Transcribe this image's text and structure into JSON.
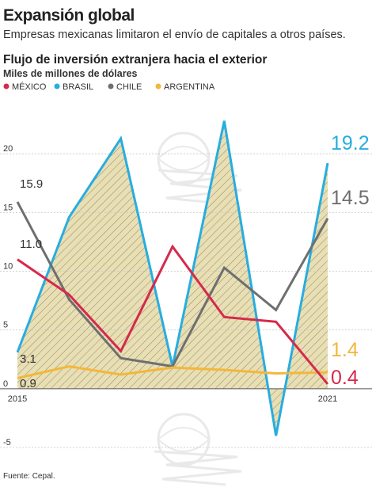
{
  "headline": "Expansión global",
  "subheadline": "Empresas mexicanas limitaron el envío de capitales a otros países.",
  "source": "Fuente: Cepal.",
  "chart_data": {
    "type": "line",
    "title": "Flujo de inversión extranjera hacia el exterior",
    "ylabel": "Miles de millones de dólares",
    "x": [
      2015,
      2016,
      2017,
      2018,
      2019,
      2020,
      2021
    ],
    "x_tick_labels": [
      "2015",
      "2021"
    ],
    "ylim": [
      -5,
      25
    ],
    "y_ticks": [
      "-5",
      "0",
      "5",
      "10",
      "15",
      "20"
    ],
    "legend_placement": "top-left",
    "fill_series": "BRASIL",
    "fill_color": "#e8dfb5",
    "series": [
      {
        "name": "MÉXICO",
        "color": "#d6294b",
        "values": [
          11.0,
          8.0,
          3.2,
          12.1,
          6.1,
          5.7,
          0.4
        ],
        "start_label": "11.0",
        "end_label": "0.4"
      },
      {
        "name": "BRASIL",
        "color": "#27ade0",
        "values": [
          3.1,
          14.6,
          21.3,
          1.9,
          22.8,
          -4.0,
          19.2
        ],
        "start_label": "3.1",
        "end_label": "19.2"
      },
      {
        "name": "CHILE",
        "color": "#6f6f6f",
        "values": [
          15.9,
          7.6,
          2.6,
          1.9,
          10.3,
          6.7,
          14.5
        ],
        "start_label": "15.9",
        "end_label": "14.5"
      },
      {
        "name": "ARGENTINA",
        "color": "#f3b73a",
        "values": [
          0.9,
          1.9,
          1.2,
          1.8,
          1.6,
          1.3,
          1.4
        ],
        "start_label": "0.9",
        "end_label": "1.4"
      }
    ]
  }
}
